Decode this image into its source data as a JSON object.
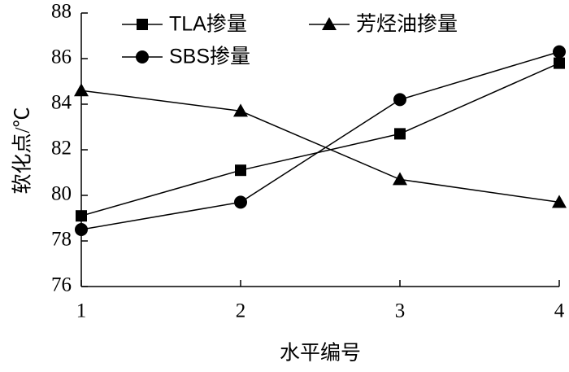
{
  "chart_data": {
    "type": "line",
    "x_label": "水平编号",
    "y_label": "软化点/℃",
    "x": [
      1,
      2,
      3,
      4
    ],
    "series": [
      {
        "name": "TLA掺量",
        "color": "#000000",
        "marker": "square",
        "values": [
          79.1,
          81.1,
          82.7,
          85.8
        ]
      },
      {
        "name": "芳烃油掺量",
        "color": "#000000",
        "marker": "triangle",
        "values": [
          84.6,
          83.7,
          80.7,
          79.7
        ]
      },
      {
        "name": "SBS掺量",
        "color": "#000000",
        "marker": "circle",
        "values": [
          78.5,
          79.7,
          84.2,
          86.3
        ]
      }
    ],
    "xlim": [
      1,
      4
    ],
    "xticks": [
      1,
      2,
      3,
      4
    ],
    "ylim": [
      76,
      88
    ],
    "yticks": [
      76,
      78,
      80,
      82,
      84,
      86,
      88
    ],
    "grid": false,
    "legend": "top"
  }
}
